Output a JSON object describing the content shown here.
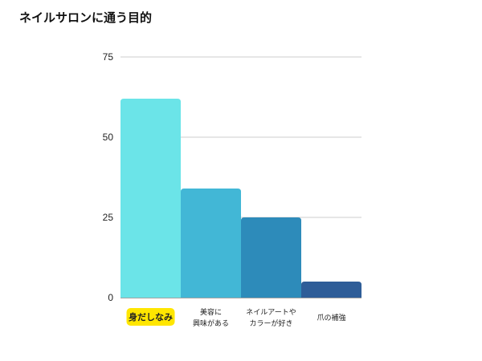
{
  "chart_data": {
    "type": "bar",
    "title": "ネイルサロンに通う目的",
    "xlabel": "",
    "ylabel": "",
    "ylim": [
      0,
      75
    ],
    "yticks": [
      0,
      25,
      50,
      75
    ],
    "grid": true,
    "categories": [
      [
        "身だしなみ"
      ],
      [
        "美容に",
        "興味がある"
      ],
      [
        "ネイルアートや",
        "カラーが好き"
      ],
      [
        "爪の補強"
      ]
    ],
    "values": [
      62,
      34,
      25,
      5
    ],
    "colors": [
      "#6be4e8",
      "#42b7d6",
      "#2d8bba",
      "#2e5d98"
    ],
    "highlight": {
      "index": 0,
      "color": "#ffe600"
    }
  }
}
